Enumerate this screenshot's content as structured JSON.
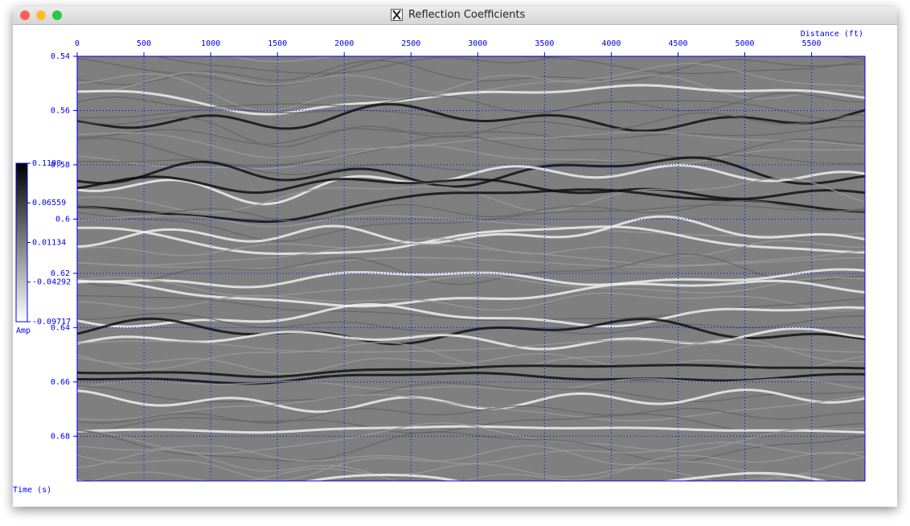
{
  "window": {
    "title": "Reflection Coefficients"
  },
  "chart_data": {
    "type": "image",
    "x_label": "Distance (ft)",
    "y_label": "Time (s)",
    "xlim": [
      0,
      5900
    ],
    "ylim": [
      0.54,
      0.6965
    ],
    "xticks": [
      0,
      500,
      1000,
      1500,
      2000,
      2500,
      3000,
      3500,
      4000,
      4500,
      5000,
      5500
    ],
    "yticks": [
      0.54,
      0.56,
      0.58,
      0.6,
      0.62,
      0.64,
      0.66,
      0.68
    ],
    "grid": true,
    "axis_color": "#0000ee",
    "colorbar": {
      "label": "Amp",
      "lim": [
        -0.09717,
        0.1198
      ],
      "ticks": [
        0.1198,
        0.06559,
        0.01134,
        -0.04292,
        -0.09717
      ]
    }
  }
}
